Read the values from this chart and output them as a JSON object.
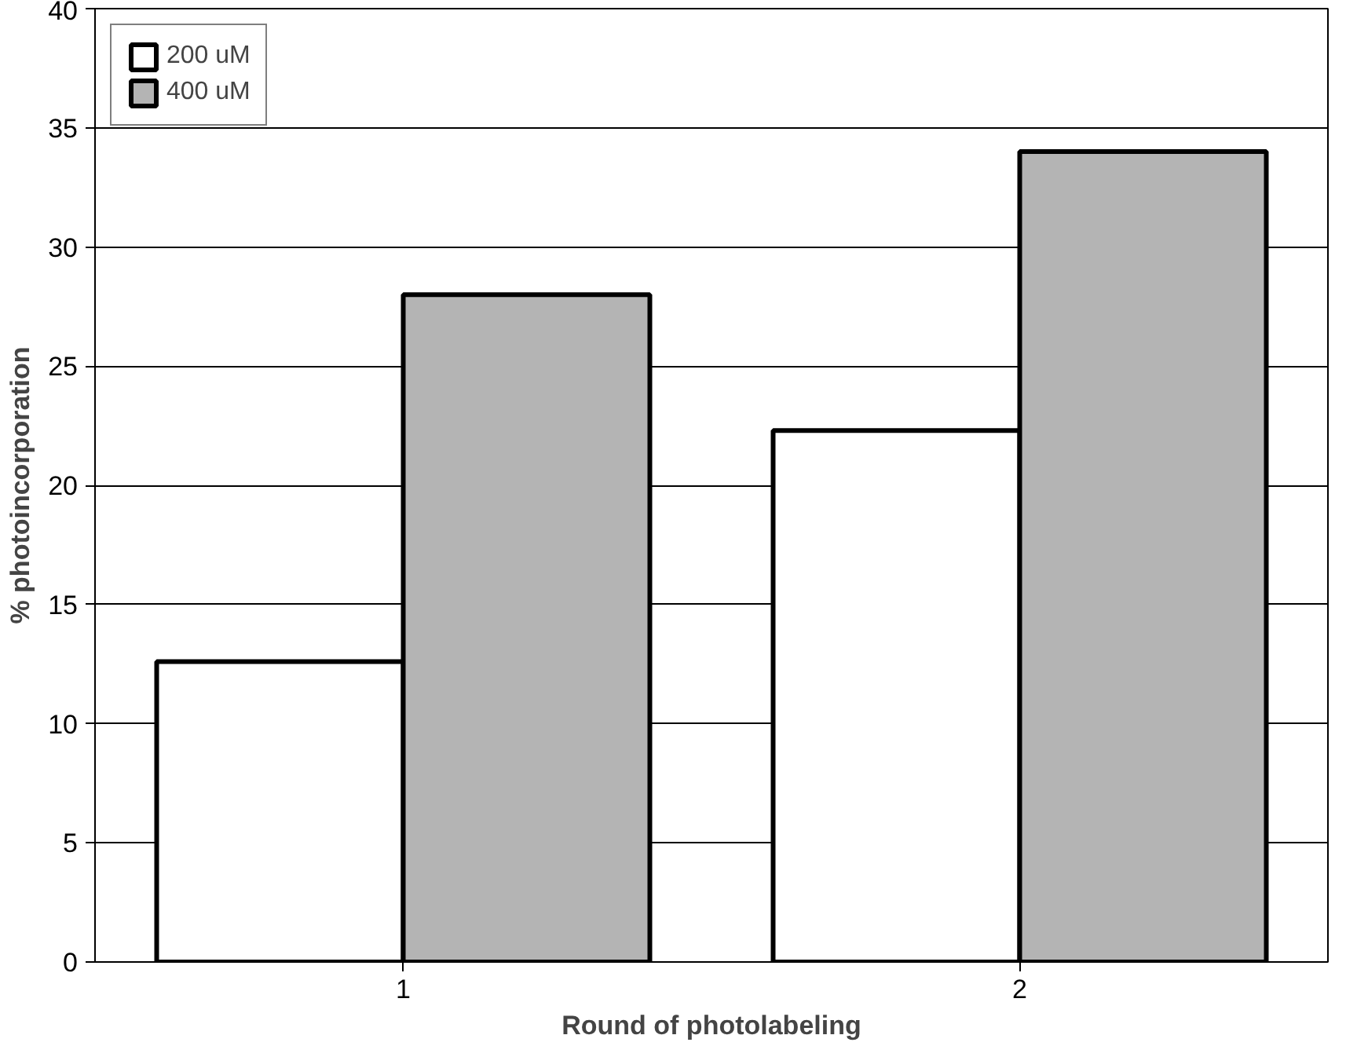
{
  "chart_data": {
    "type": "bar",
    "xlabel": "Round of photolabeling",
    "ylabel": "% photoincorporation",
    "categories": [
      "1",
      "2"
    ],
    "series": [
      {
        "name": "200 uM",
        "color": "#ffffff",
        "values": [
          12.6,
          22.3
        ]
      },
      {
        "name": "400 uM",
        "color": "#b4b4b4",
        "values": [
          28,
          34
        ]
      }
    ],
    "ylim": [
      0,
      40
    ],
    "yticks": [
      0,
      5,
      10,
      15,
      20,
      25,
      30,
      35,
      40
    ],
    "grid": "y",
    "legend": "top left"
  }
}
